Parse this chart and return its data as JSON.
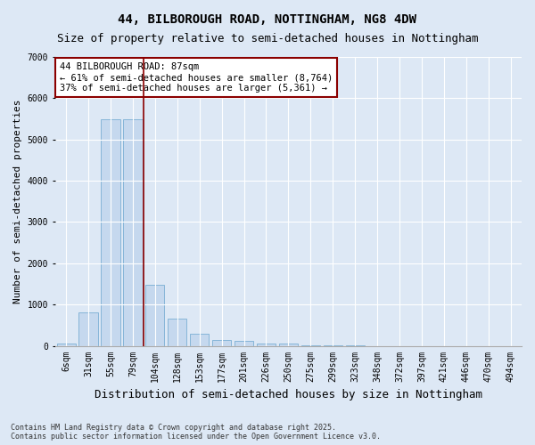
{
  "title_line1": "44, BILBOROUGH ROAD, NOTTINGHAM, NG8 4DW",
  "title_line2": "Size of property relative to semi-detached houses in Nottingham",
  "xlabel": "Distribution of semi-detached houses by size in Nottingham",
  "ylabel": "Number of semi-detached properties",
  "categories": [
    "6sqm",
    "31sqm",
    "55sqm",
    "79sqm",
    "104sqm",
    "128sqm",
    "153sqm",
    "177sqm",
    "201sqm",
    "226sqm",
    "250sqm",
    "275sqm",
    "299sqm",
    "323sqm",
    "348sqm",
    "372sqm",
    "397sqm",
    "421sqm",
    "446sqm",
    "470sqm",
    "494sqm"
  ],
  "values": [
    50,
    800,
    5500,
    5480,
    1480,
    650,
    290,
    135,
    110,
    65,
    50,
    20,
    10,
    5,
    0,
    0,
    0,
    0,
    0,
    0,
    0
  ],
  "bar_color": "#c5d8ee",
  "bar_edgecolor": "#7aafd4",
  "vline_color": "#8b0000",
  "vline_index": 3.5,
  "annotation_text": "44 BILBOROUGH ROAD: 87sqm\n← 61% of semi-detached houses are smaller (8,764)\n37% of semi-detached houses are larger (5,361) →",
  "annotation_box_facecolor": "#ffffff",
  "annotation_box_edgecolor": "#8b0000",
  "ylim": [
    0,
    7000
  ],
  "yticks": [
    0,
    1000,
    2000,
    3000,
    4000,
    5000,
    6000,
    7000
  ],
  "background_color": "#dde8f5",
  "plot_bg_color": "#dde8f5",
  "footer": "Contains HM Land Registry data © Crown copyright and database right 2025.\nContains public sector information licensed under the Open Government Licence v3.0.",
  "title_fontsize": 10,
  "subtitle_fontsize": 9,
  "tick_fontsize": 7,
  "ylabel_fontsize": 8,
  "xlabel_fontsize": 9,
  "annotation_fontsize": 7.5
}
